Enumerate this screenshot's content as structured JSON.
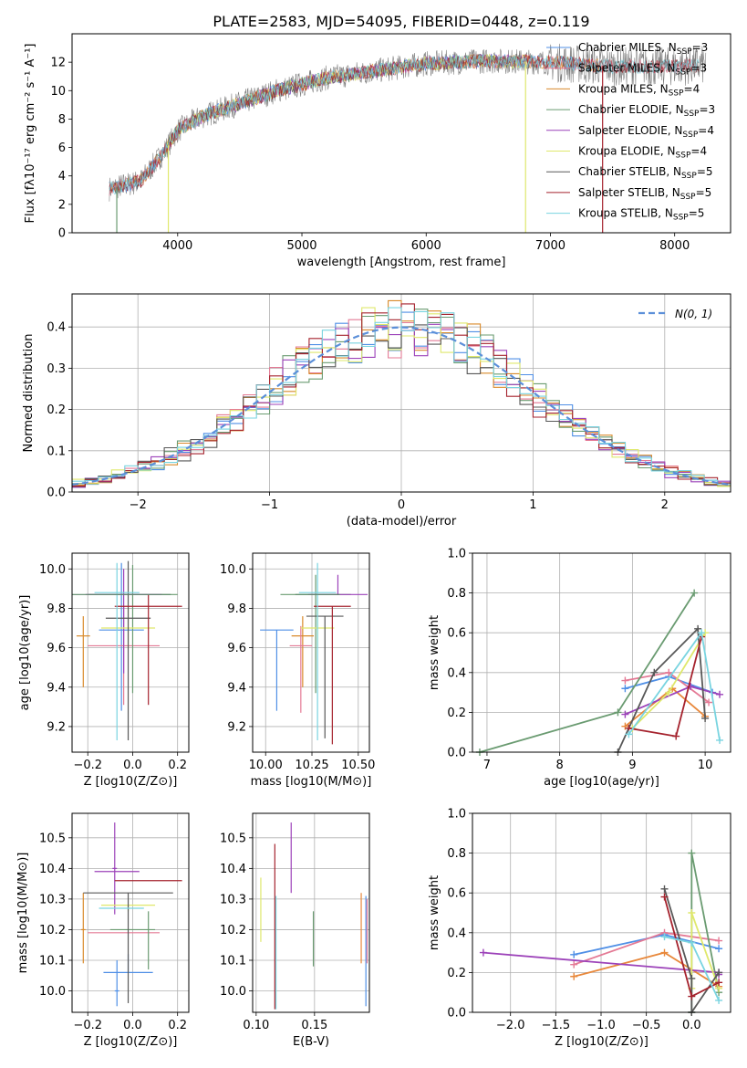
{
  "figure_title": "PLATE=2583, MJD=54095, FIBERID=0448, z=0.119",
  "series_colors": [
    "#4f8fe6",
    "#e8883b",
    "#b5b5b5",
    "#6e6e6e",
    "#9c42b9",
    "#e47a95",
    "#ff9933",
    "#6a9b71",
    "#dfe86c",
    "#585858",
    "#a5222d",
    "#79d4e0",
    "#5d8a68",
    "#c06020"
  ],
  "chart_data": [
    {
      "id": "spectrum",
      "type": "line",
      "title": "PLATE=2583, MJD=54095, FIBERID=0448, z=0.119",
      "xlabel": "wavelength [Angstrom, rest frame]",
      "ylabel": "Flux [fλ10⁻¹⁷ erg cm⁻² s⁻¹ A⁻¹]",
      "xlim": [
        3150,
        8450
      ],
      "ylim": [
        0,
        14
      ],
      "xticks": [
        4000,
        5000,
        6000,
        7000,
        8000
      ],
      "yticks": [
        0,
        2,
        4,
        6,
        8,
        10,
        12
      ],
      "grid": false,
      "legend_loc": "upper right",
      "continuum": [
        [
          3450,
          3.1
        ],
        [
          3700,
          3.6
        ],
        [
          3900,
          5.8
        ],
        [
          4000,
          7.2
        ],
        [
          4200,
          8.2
        ],
        [
          4500,
          9.1
        ],
        [
          4800,
          10.0
        ],
        [
          5200,
          10.9
        ],
        [
          5600,
          11.4
        ],
        [
          6000,
          11.9
        ],
        [
          6500,
          12.1
        ],
        [
          7000,
          12.0
        ],
        [
          7500,
          11.7
        ],
        [
          8000,
          11.7
        ],
        [
          8250,
          11.8
        ]
      ],
      "data_line_color": "#808080",
      "series": [
        {
          "name": "Chabrier MILES, N_SSP=3",
          "color": "#4f8fe6",
          "xrange": [
            3450,
            7400
          ]
        },
        {
          "name": "Salpeter MILES, N_SSP=3",
          "color": "#e47a95",
          "xrange": [
            3450,
            8200
          ]
        },
        {
          "name": "Kroupa MILES, N_SSP=4",
          "color": "#d98a2b",
          "xrange": [
            3450,
            7400
          ]
        },
        {
          "name": "Chabrier ELODIE, N_SSP=3",
          "color": "#6a9b71",
          "xrange": [
            3900,
            6800
          ]
        },
        {
          "name": "Salpeter ELODIE, N_SSP=4",
          "color": "#9c42b9",
          "xrange": [
            3900,
            6800
          ]
        },
        {
          "name": "Kroupa ELODIE, N_SSP=4",
          "color": "#dfe86c",
          "xrange": [
            3900,
            6800
          ]
        },
        {
          "name": "Chabrier STELIB, N_SSP=5",
          "color": "#585858",
          "xrange": [
            3450,
            8200
          ]
        },
        {
          "name": "Salpeter STELIB, N_SSP=5",
          "color": "#a5222d",
          "xrange": [
            3450,
            8200
          ]
        },
        {
          "name": "Kroupa STELIB, N_SSP=5",
          "color": "#79d4e0",
          "xrange": [
            3450,
            8200
          ]
        }
      ]
    },
    {
      "id": "residuals",
      "type": "line",
      "xlabel": "(data-model)/error",
      "ylabel": "Normed distribution",
      "xlim": [
        -2.5,
        2.5
      ],
      "ylim": [
        0,
        0.48
      ],
      "xticks": [
        -2,
        -1,
        0,
        1,
        2
      ],
      "yticks": [
        0.0,
        0.1,
        0.2,
        0.3,
        0.4
      ],
      "grid": true,
      "legend_loc": "upper right",
      "legend": "N(0,1)",
      "normal_curve": {
        "mean": 0,
        "sigma": 1,
        "color": "#5b8fd9"
      },
      "bin_width": 0.1,
      "histogram_colors": [
        "#4f8fe6",
        "#e47a95",
        "#d98a2b",
        "#6a9b71",
        "#9c42b9",
        "#dfe86c",
        "#585858",
        "#a5222d",
        "#79d4e0"
      ]
    },
    {
      "id": "age_vs_Z",
      "type": "errorbar",
      "xlabel": "Z [log10(Z/Z⊙)]",
      "ylabel": "age  [log10(age/yr)]",
      "xlim": [
        -0.27,
        0.25
      ],
      "ylim": [
        9.07,
        10.08
      ],
      "xticks": [
        -0.2,
        0.0,
        0.2
      ],
      "yticks": [
        9.2,
        9.4,
        9.6,
        9.8,
        10.0
      ],
      "grid": true,
      "points": [
        {
          "x": -0.05,
          "y": 9.69,
          "xerr": 0.1,
          "yerr": [
            0.41,
            0.34
          ],
          "color": "#4f8fe6"
        },
        {
          "x": -0.22,
          "y": 9.66,
          "xerr": 0.03,
          "yerr": [
            0.26,
            0.1
          ],
          "color": "#d98a2b"
        },
        {
          "x": -0.04,
          "y": 9.61,
          "xerr": 0.16,
          "yerr": [
            0.3,
            0.2
          ],
          "color": "#e47a95"
        },
        {
          "x": 0.0,
          "y": 9.87,
          "xerr": 0.2,
          "yerr": [
            0.5,
            0.15
          ],
          "color": "#6a9b71"
        },
        {
          "x": -0.04,
          "y": 9.87,
          "xerr": 0.17,
          "yerr": [
            0.4,
            0.13
          ],
          "color": "#9c42b9"
        },
        {
          "x": -0.02,
          "y": 9.7,
          "xerr": 0.12,
          "yerr": [
            0.1,
            0.1
          ],
          "color": "#dfe86c"
        },
        {
          "x": -0.02,
          "y": 9.75,
          "xerr": 0.1,
          "yerr": [
            0.62,
            0.29
          ],
          "color": "#585858"
        },
        {
          "x": 0.07,
          "y": 9.81,
          "xerr": 0.15,
          "yerr": [
            0.5,
            0.06
          ],
          "color": "#a5222d"
        },
        {
          "x": -0.07,
          "y": 9.88,
          "xerr": 0.1,
          "yerr": [
            0.75,
            0.15
          ],
          "color": "#79d4e0"
        },
        {
          "x": -0.05,
          "y": 9.87,
          "xerr": 0.22,
          "yerr": [
            0.0,
            0.0
          ],
          "color": "#5d8a68"
        }
      ]
    },
    {
      "id": "age_vs_mass",
      "type": "errorbar",
      "xlabel": "mass [log10(M/M⊙)]",
      "ylabel": "",
      "xlim": [
        9.93,
        10.56
      ],
      "ylim": [
        9.07,
        10.08
      ],
      "xticks": [
        10.0,
        10.25,
        10.5
      ],
      "xticklabels": [
        "10.00",
        "10.25",
        "10.50"
      ],
      "yticks": [
        9.2,
        9.4,
        9.6,
        9.8,
        10.0
      ],
      "grid": true,
      "points": [
        {
          "x": 10.06,
          "y": 9.69,
          "xerr": 0.09,
          "yerr": [
            0.41,
            0.0
          ],
          "color": "#4f8fe6"
        },
        {
          "x": 10.2,
          "y": 9.66,
          "xerr": 0.06,
          "yerr": [
            0.26,
            0.1
          ],
          "color": "#d98a2b"
        },
        {
          "x": 10.19,
          "y": 9.61,
          "xerr": 0.06,
          "yerr": [
            0.34,
            0.1
          ],
          "color": "#e47a95"
        },
        {
          "x": 10.27,
          "y": 9.87,
          "xerr": 0.19,
          "yerr": [
            0.5,
            0.1
          ],
          "color": "#6a9b71"
        },
        {
          "x": 10.39,
          "y": 9.87,
          "xerr": 0.16,
          "yerr": [
            0.0,
            0.1
          ],
          "color": "#9c42b9"
        },
        {
          "x": 10.28,
          "y": 9.7,
          "xerr": 0.09,
          "yerr": [
            0.1,
            0.1
          ],
          "color": "#dfe86c"
        },
        {
          "x": 10.32,
          "y": 9.76,
          "xerr": 0.1,
          "yerr": [
            0.62,
            0.0
          ],
          "color": "#585858"
        },
        {
          "x": 10.36,
          "y": 9.81,
          "xerr": 0.1,
          "yerr": [
            0.7,
            0.0
          ],
          "color": "#a5222d"
        },
        {
          "x": 10.28,
          "y": 9.88,
          "xerr": 0.1,
          "yerr": [
            0.75,
            0.15
          ],
          "color": "#79d4e0"
        },
        {
          "x": 10.28,
          "y": 9.87,
          "xerr": 0.12,
          "yerr": [
            0.0,
            0.0
          ],
          "color": "#5d8a68"
        }
      ]
    },
    {
      "id": "massweight_vs_age",
      "type": "line",
      "xlabel": "age  [log10(age/yr)]",
      "ylabel": "mass weight",
      "xlim": [
        6.8,
        10.35
      ],
      "ylim": [
        0.0,
        1.0
      ],
      "xticks": [
        7,
        8,
        9,
        10
      ],
      "yticks": [
        0.0,
        0.2,
        0.4,
        0.6,
        0.8,
        1.0
      ],
      "grid": true,
      "series": [
        {
          "color": "#4f8fe6",
          "points": [
            [
              8.9,
              0.32
            ],
            [
              9.5,
              0.38
            ],
            [
              10.1,
              0.3
            ]
          ]
        },
        {
          "color": "#e47a95",
          "points": [
            [
              8.9,
              0.36
            ],
            [
              9.5,
              0.4
            ],
            [
              10.05,
              0.25
            ]
          ]
        },
        {
          "color": "#e8883b",
          "points": [
            [
              8.9,
              0.13
            ],
            [
              9.55,
              0.32
            ],
            [
              10.0,
              0.18
            ]
          ]
        },
        {
          "color": "#6a9b71",
          "points": [
            [
              6.9,
              0.0
            ],
            [
              8.8,
              0.2
            ],
            [
              9.85,
              0.8
            ]
          ]
        },
        {
          "color": "#9c42b9",
          "points": [
            [
              8.9,
              0.19
            ],
            [
              9.8,
              0.33
            ],
            [
              10.2,
              0.29
            ]
          ]
        },
        {
          "color": "#dfe86c",
          "points": [
            [
              9.0,
              0.12
            ],
            [
              9.5,
              0.3
            ],
            [
              10.0,
              0.6
            ]
          ]
        },
        {
          "color": "#585858",
          "points": [
            [
              8.8,
              0.0
            ],
            [
              9.3,
              0.4
            ],
            [
              9.9,
              0.62
            ],
            [
              10.0,
              0.17
            ]
          ]
        },
        {
          "color": "#a5222d",
          "points": [
            [
              8.95,
              0.12
            ],
            [
              9.6,
              0.08
            ],
            [
              9.95,
              0.58
            ]
          ]
        },
        {
          "color": "#79d4e0",
          "points": [
            [
              8.95,
              0.09
            ],
            [
              9.95,
              0.6
            ],
            [
              10.2,
              0.06
            ]
          ]
        }
      ]
    },
    {
      "id": "mass_vs_Z",
      "type": "errorbar",
      "xlabel": "Z [log10(Z/Z⊙)]",
      "ylabel": "mass [log10(M/M⊙)]",
      "xlim": [
        -0.27,
        0.25
      ],
      "ylim": [
        9.93,
        10.58
      ],
      "xticks": [
        -0.2,
        0.0,
        0.2
      ],
      "yticks": [
        10.0,
        10.1,
        10.2,
        10.3,
        10.4,
        10.5
      ],
      "grid": true,
      "points": [
        {
          "x": -0.02,
          "y": 10.06,
          "xerr": 0.11,
          "yerr": [
            0.0,
            0.06
          ],
          "color": "#4f8fe6"
        },
        {
          "x": -0.07,
          "y": 10.0,
          "xerr": 0.01,
          "yerr": [
            0.05,
            0.1
          ],
          "color": "#4f8fe6"
        },
        {
          "x": -0.22,
          "y": 10.2,
          "xerr": 0.01,
          "yerr": [
            0.11,
            0.12
          ],
          "color": "#d98a2b"
        },
        {
          "x": -0.04,
          "y": 10.19,
          "xerr": 0.16,
          "yerr": [
            0.0,
            0.0
          ],
          "color": "#e47a95"
        },
        {
          "x": 0.0,
          "y": 10.2,
          "xerr": 0.1,
          "yerr": [
            0.0,
            0.0
          ],
          "color": "#6a9b71"
        },
        {
          "x": -0.07,
          "y": 10.39,
          "xerr": 0.1,
          "yerr": [
            0.0,
            0.0
          ],
          "color": "#9c42b9"
        },
        {
          "x": -0.08,
          "y": 10.4,
          "xerr": 0.01,
          "yerr": [
            0.15,
            0.15
          ],
          "color": "#9c42b9"
        },
        {
          "x": -0.02,
          "y": 10.28,
          "xerr": 0.12,
          "yerr": [
            0.02,
            0.0
          ],
          "color": "#dfe86c"
        },
        {
          "x": -0.02,
          "y": 10.32,
          "xerr": 0.2,
          "yerr": [
            0.36,
            0.0
          ],
          "color": "#585858"
        },
        {
          "x": 0.07,
          "y": 10.36,
          "xerr": 0.15,
          "yerr": [
            0.0,
            0.0
          ],
          "color": "#a5222d"
        },
        {
          "x": -0.05,
          "y": 10.27,
          "xerr": 0.1,
          "yerr": [
            0.0,
            0.0
          ],
          "color": "#79d4e0"
        },
        {
          "x": 0.07,
          "y": 10.21,
          "xerr": 0.0,
          "yerr": [
            0.14,
            0.05
          ],
          "color": "#6a9b71"
        }
      ]
    },
    {
      "id": "mass_vs_ebv",
      "type": "errorbar",
      "xlabel": "E(B-V)",
      "ylabel": "",
      "xlim": [
        0.097,
        0.197
      ],
      "ylim": [
        9.93,
        10.58
      ],
      "xticks": [
        0.1,
        0.15
      ],
      "xticklabels": [
        "0.10",
        "0.15"
      ],
      "yticks": [
        10.0,
        10.1,
        10.2,
        10.3,
        10.4,
        10.5
      ],
      "grid": true,
      "points": [
        {
          "x": 0.104,
          "y": 10.28,
          "yerr": [
            0.12,
            0.09
          ],
          "color": "#dfe86c"
        },
        {
          "x": 0.116,
          "y": 10.21,
          "yerr": [
            0.27,
            0.27
          ],
          "color": "#a5222d"
        },
        {
          "x": 0.117,
          "y": 10.15,
          "yerr": [
            0.21,
            0.16
          ],
          "color": "#79d4e0"
        },
        {
          "x": 0.13,
          "y": 10.43,
          "yerr": [
            0.11,
            0.12
          ],
          "color": "#9c42b9"
        },
        {
          "x": 0.149,
          "y": 10.17,
          "yerr": [
            0.09,
            0.09
          ],
          "color": "#6a9b71"
        },
        {
          "x": 0.19,
          "y": 10.2,
          "yerr": [
            0.11,
            0.12
          ],
          "color": "#e8883b"
        },
        {
          "x": 0.194,
          "y": 10.15,
          "yerr": [
            0.2,
            0.16
          ],
          "color": "#4f8fe6"
        },
        {
          "x": 0.195,
          "y": 10.19,
          "yerr": [
            0.1,
            0.11
          ],
          "color": "#e47a95"
        }
      ]
    },
    {
      "id": "massweight_vs_Z",
      "type": "line",
      "xlabel": "Z [log10(Z/Z⊙)]",
      "ylabel": "mass weight",
      "xlim": [
        -2.42,
        0.43
      ],
      "ylim": [
        0.0,
        1.0
      ],
      "xticks": [
        -2.0,
        -1.5,
        -1.0,
        -0.5,
        0.0
      ],
      "grid": true,
      "yticks": [
        0.0,
        0.2,
        0.4,
        0.6,
        0.8,
        1.0
      ],
      "series": [
        {
          "color": "#4f8fe6",
          "points": [
            [
              -1.3,
              0.29
            ],
            [
              -0.3,
              0.39
            ],
            [
              0.3,
              0.32
            ]
          ]
        },
        {
          "color": "#e47a95",
          "points": [
            [
              -1.3,
              0.24
            ],
            [
              -0.3,
              0.4
            ],
            [
              0.3,
              0.36
            ]
          ]
        },
        {
          "color": "#e8883b",
          "points": [
            [
              -1.3,
              0.18
            ],
            [
              -0.3,
              0.3
            ],
            [
              0.3,
              0.13
            ]
          ]
        },
        {
          "color": "#6a9b71",
          "points": [
            [
              0.0,
              0.0
            ],
            [
              0.0,
              0.8
            ],
            [
              0.3,
              0.1
            ]
          ]
        },
        {
          "color": "#9c42b9",
          "points": [
            [
              -2.3,
              0.3
            ],
            [
              0.3,
              0.2
            ],
            [
              0.3,
              0.19
            ]
          ]
        },
        {
          "color": "#dfe86c",
          "points": [
            [
              0.0,
              0.12
            ],
            [
              0.0,
              0.5
            ],
            [
              0.3,
              0.12
            ]
          ]
        },
        {
          "color": "#585858",
          "points": [
            [
              -0.3,
              0.62
            ],
            [
              0.0,
              0.17
            ],
            [
              0.0,
              0.0
            ],
            [
              0.3,
              0.2
            ]
          ]
        },
        {
          "color": "#a5222d",
          "points": [
            [
              -0.3,
              0.58
            ],
            [
              0.0,
              0.08
            ],
            [
              0.3,
              0.15
            ]
          ]
        },
        {
          "color": "#79d4e0",
          "points": [
            [
              -0.3,
              0.38
            ],
            [
              0.0,
              0.35
            ],
            [
              0.3,
              0.06
            ]
          ]
        }
      ]
    }
  ]
}
